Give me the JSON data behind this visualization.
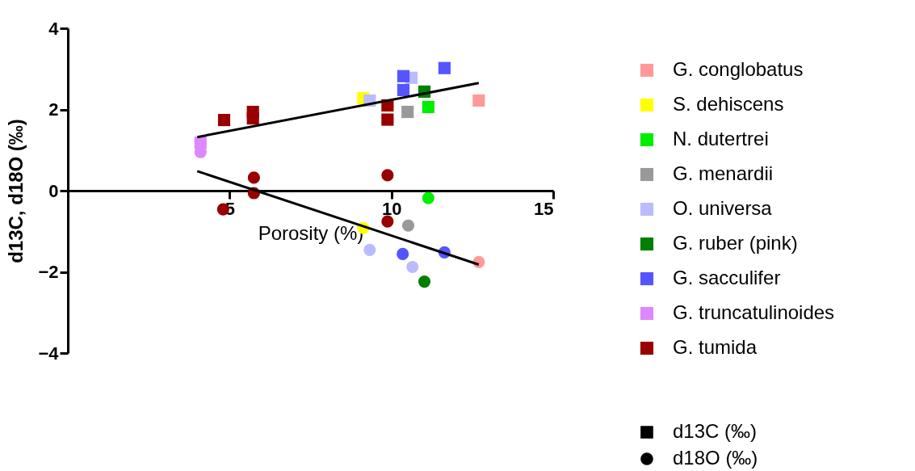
{
  "chart_data": {
    "type": "scatter",
    "xlabel": "Porosity (%)",
    "ylabel": "d13C, d18O (‰)",
    "xlim": [
      0,
      15
    ],
    "xticks": [
      5,
      10,
      15
    ],
    "ylim": [
      -4,
      4
    ],
    "yticks": [
      -4,
      -2,
      0,
      2,
      4
    ],
    "grid": false,
    "legend": "right",
    "annotations": [
      "d13C (‰)",
      "d18O (‰)"
    ],
    "series": [
      {
        "name": "G. conglobatus",
        "color": "#ff9999",
        "marker": "square",
        "x": [
          12.7
        ],
        "values": [
          2.22
        ]
      },
      {
        "name": "S. dehiscens",
        "color": "#ffff00",
        "marker": "square",
        "x": [
          9.13
        ],
        "values": [
          2.28
        ]
      },
      {
        "name": "N. dutertrei",
        "color": "#00ee00",
        "marker": "square",
        "x": [
          11.14
        ],
        "values": [
          2.06
        ]
      },
      {
        "name": "G. menardii",
        "color": "#999999",
        "marker": "square",
        "x": [
          10.5
        ],
        "values": [
          1.94
        ]
      },
      {
        "name": "O. universa",
        "color": "#bbbbff",
        "marker": "square",
        "x": [
          9.33,
          10.62
        ],
        "values": [
          2.22,
          2.78
        ]
      },
      {
        "name": "G. ruber (pink)",
        "color": "#007f00",
        "marker": "square",
        "x": [
          11.02
        ],
        "values": [
          2.44
        ]
      },
      {
        "name": "G. sacculifer",
        "color": "#5555ff",
        "marker": "square",
        "x": [
          10.37,
          10.37,
          11.64
        ],
        "values": [
          2.82,
          2.48,
          3.02
        ]
      },
      {
        "name": "G. truncatulinoides",
        "color": "#dd88ff",
        "marker": "square",
        "x": [
          4.1
        ],
        "values": [
          1.18
        ]
      },
      {
        "name": "G. tumida",
        "color": "#990000",
        "marker": "square",
        "x": [
          4.83,
          5.72,
          5.72,
          9.88,
          9.88
        ],
        "values": [
          1.74,
          1.94,
          1.78,
          2.1,
          1.75
        ]
      },
      {
        "color": "#ff9999",
        "marker": "circle",
        "x": [
          12.7
        ],
        "values": [
          -1.76
        ]
      },
      {
        "color": "#ffff00",
        "marker": "circle",
        "x": [
          9.13
        ],
        "values": [
          -0.92
        ]
      },
      {
        "color": "#00ee00",
        "marker": "circle",
        "x": [
          11.14
        ],
        "values": [
          -0.18
        ]
      },
      {
        "color": "#999999",
        "marker": "circle",
        "x": [
          10.52
        ],
        "values": [
          -0.86
        ]
      },
      {
        "color": "#bbbbff",
        "marker": "circle",
        "x": [
          9.33,
          10.65
        ],
        "values": [
          -1.46,
          -1.88
        ]
      },
      {
        "color": "#007f00",
        "marker": "circle",
        "x": [
          11.02
        ],
        "values": [
          -2.24
        ]
      },
      {
        "color": "#5555ff",
        "marker": "circle",
        "x": [
          10.35,
          11.64
        ],
        "values": [
          -1.56,
          -1.52
        ]
      },
      {
        "color": "#dd88ff",
        "marker": "circle",
        "x": [
          4.1
        ],
        "values": [
          0.95
        ]
      },
      {
        "color": "#990000",
        "marker": "circle",
        "x": [
          5.75,
          5.75,
          4.8,
          9.88,
          9.88
        ],
        "values": [
          0.32,
          -0.06,
          -0.46,
          0.38,
          -0.76
        ]
      },
      {
        "type": "line",
        "color": "#000000",
        "x": [
          4.0,
          12.7
        ],
        "values": [
          1.32,
          2.65
        ]
      },
      {
        "type": "line",
        "color": "#000000",
        "x": [
          4.0,
          12.7
        ],
        "values": [
          0.48,
          -1.82
        ]
      }
    ]
  }
}
